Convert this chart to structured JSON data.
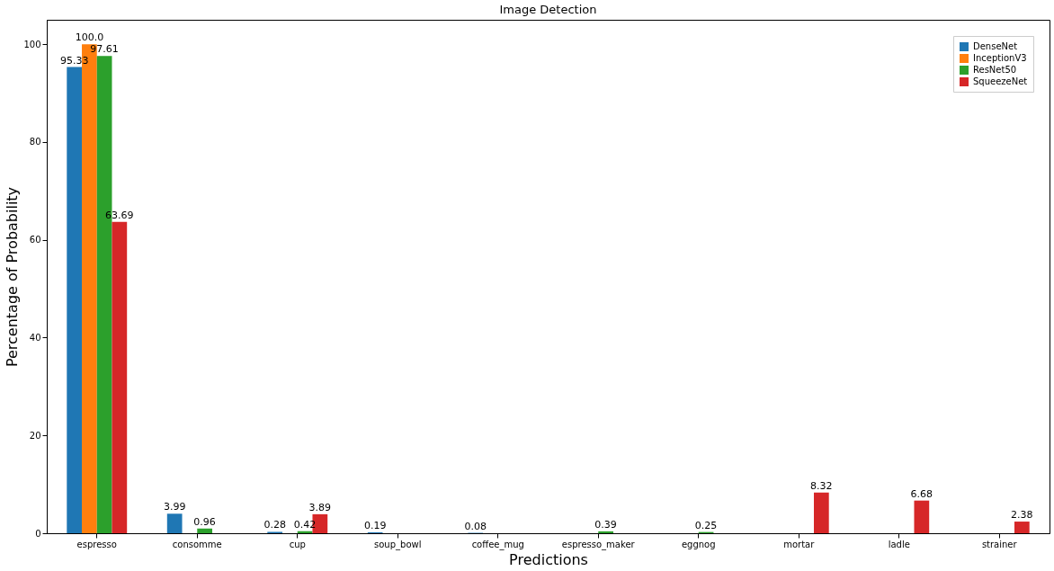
{
  "chart_data": {
    "type": "bar",
    "title": "Image Detection",
    "xlabel": "Predictions",
    "ylabel": "Percentage of Probability",
    "categories": [
      "espresso",
      "consomme",
      "cup",
      "soup_bowl",
      "coffee_mug",
      "espresso_maker",
      "eggnog",
      "mortar",
      "ladle",
      "strainer"
    ],
    "series": [
      {
        "name": "DenseNet",
        "color": "#1f77b4",
        "values": [
          95.33,
          3.99,
          0.28,
          0.19,
          0.08,
          null,
          null,
          null,
          null,
          null
        ],
        "value_labels": [
          "95.33",
          "3.99",
          "0.28",
          "0.19",
          "0.08",
          null,
          null,
          null,
          null,
          null
        ]
      },
      {
        "name": "InceptionV3",
        "color": "#ff7f0e",
        "values": [
          100.0,
          null,
          null,
          null,
          null,
          null,
          null,
          null,
          null,
          null
        ],
        "value_labels": [
          "100.0",
          null,
          null,
          null,
          null,
          null,
          null,
          null,
          null,
          null
        ]
      },
      {
        "name": "ResNet50",
        "color": "#2ca02c",
        "values": [
          97.61,
          0.96,
          0.42,
          null,
          null,
          0.39,
          0.25,
          null,
          null,
          null
        ],
        "value_labels": [
          "97.61",
          "0.96",
          "0.42",
          null,
          null,
          "0.39",
          "0.25",
          null,
          null,
          null
        ]
      },
      {
        "name": "SqueezeNet",
        "color": "#d62728",
        "values": [
          63.69,
          null,
          3.89,
          null,
          null,
          null,
          null,
          8.32,
          6.68,
          2.38
        ],
        "value_labels": [
          "63.69",
          null,
          "3.89",
          null,
          null,
          null,
          null,
          "8.32",
          "6.68",
          "2.38"
        ]
      }
    ],
    "ylim": [
      0,
      105
    ],
    "yticks": [
      0,
      20,
      40,
      60,
      80,
      100
    ],
    "grid": false,
    "legend": "top right"
  }
}
